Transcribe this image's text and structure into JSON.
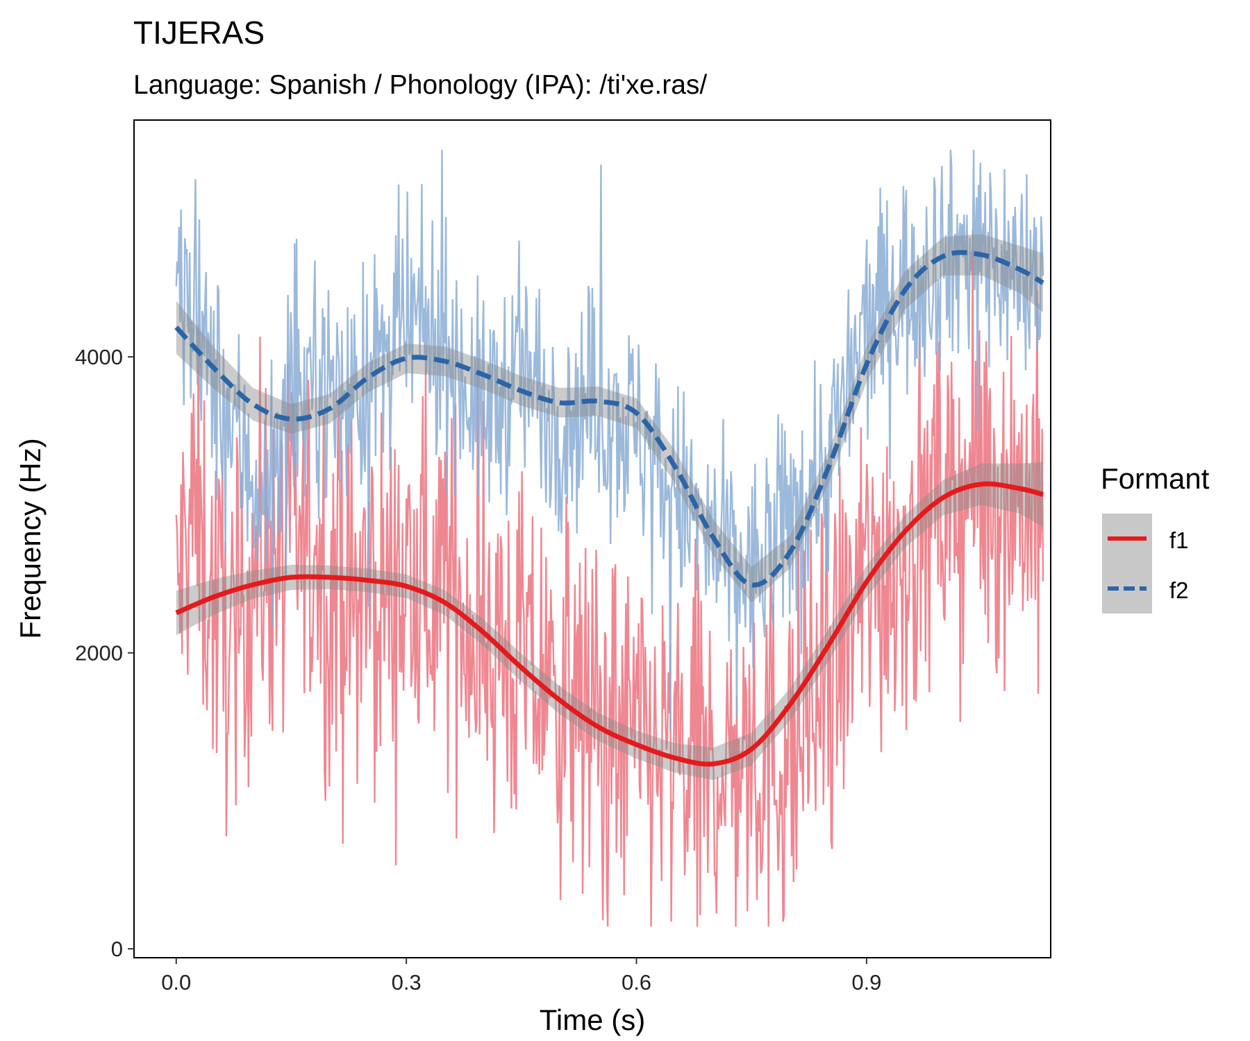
{
  "chart_data": {
    "type": "line",
    "title": "TIJERAS",
    "subtitle": "Language: Spanish / Phonology (IPA): /ti'xe.ras/",
    "xlabel": "Time (s)",
    "ylabel": "Frequency (Hz)",
    "xlim": [
      -0.055,
      1.14
    ],
    "ylim": [
      -60,
      5600
    ],
    "xticks": [
      0.0,
      0.3,
      0.6,
      0.9
    ],
    "xtick_labels": [
      "0.0",
      "0.3",
      "0.6",
      "0.9"
    ],
    "yticks": [
      0,
      2000,
      4000
    ],
    "ytick_labels": [
      "0",
      "2000",
      "4000"
    ],
    "grid": false,
    "legend": {
      "title": "Formant",
      "position": "right"
    },
    "raw_t_max": 1.13,
    "series": [
      {
        "name": "f1",
        "color": "#E41A1C",
        "raw_color": "#EE7D88",
        "linestyle": "solid",
        "raw_points": [
          [
            0.0,
            2300
          ],
          [
            0.02,
            3000
          ],
          [
            0.05,
            2300
          ],
          [
            0.08,
            2000
          ],
          [
            0.1,
            2600
          ],
          [
            0.13,
            2700
          ],
          [
            0.15,
            2650
          ],
          [
            0.18,
            2750
          ],
          [
            0.22,
            2300
          ],
          [
            0.26,
            2400
          ],
          [
            0.3,
            2400
          ],
          [
            0.35,
            2500
          ],
          [
            0.4,
            2100
          ],
          [
            0.45,
            1900
          ],
          [
            0.5,
            1700
          ],
          [
            0.55,
            1500
          ],
          [
            0.6,
            1400
          ],
          [
            0.65,
            1250
          ],
          [
            0.7,
            1200
          ],
          [
            0.75,
            1300
          ],
          [
            0.8,
            1300
          ],
          [
            0.85,
            1800
          ],
          [
            0.9,
            2500
          ],
          [
            0.95,
            2700
          ],
          [
            1.0,
            3000
          ],
          [
            1.05,
            3150
          ],
          [
            1.1,
            3100
          ],
          [
            1.13,
            3000
          ]
        ],
        "smooth": [
          [
            0.0,
            2270
          ],
          [
            0.05,
            2380
          ],
          [
            0.1,
            2460
          ],
          [
            0.15,
            2510
          ],
          [
            0.2,
            2510
          ],
          [
            0.25,
            2490
          ],
          [
            0.3,
            2450
          ],
          [
            0.35,
            2340
          ],
          [
            0.4,
            2140
          ],
          [
            0.45,
            1900
          ],
          [
            0.5,
            1680
          ],
          [
            0.55,
            1500
          ],
          [
            0.6,
            1380
          ],
          [
            0.65,
            1290
          ],
          [
            0.7,
            1250
          ],
          [
            0.75,
            1350
          ],
          [
            0.8,
            1650
          ],
          [
            0.85,
            2050
          ],
          [
            0.9,
            2480
          ],
          [
            0.95,
            2820
          ],
          [
            1.0,
            3050
          ],
          [
            1.05,
            3140
          ],
          [
            1.1,
            3110
          ],
          [
            1.13,
            3070
          ]
        ],
        "band": [
          150,
          120,
          95,
          85,
          80,
          80,
          80,
          85,
          90,
          95,
          95,
          95,
          95,
          100,
          110,
          110,
          110,
          110,
          110,
          110,
          120,
          140,
          170,
          220
        ]
      },
      {
        "name": "f2",
        "color": "#2B65A8",
        "raw_color": "#89ADD5",
        "linestyle": "dashed",
        "raw_points": [
          [
            0.0,
            4500
          ],
          [
            0.03,
            4100
          ],
          [
            0.06,
            3700
          ],
          [
            0.09,
            3300
          ],
          [
            0.12,
            3000
          ],
          [
            0.15,
            3600
          ],
          [
            0.18,
            3900
          ],
          [
            0.22,
            3700
          ],
          [
            0.26,
            3900
          ],
          [
            0.3,
            4200
          ],
          [
            0.35,
            4100
          ],
          [
            0.4,
            3600
          ],
          [
            0.45,
            3900
          ],
          [
            0.5,
            3600
          ],
          [
            0.55,
            3700
          ],
          [
            0.6,
            3500
          ],
          [
            0.65,
            3100
          ],
          [
            0.7,
            2700
          ],
          [
            0.75,
            2500
          ],
          [
            0.8,
            2900
          ],
          [
            0.85,
            3300
          ],
          [
            0.9,
            4200
          ],
          [
            0.95,
            4500
          ],
          [
            1.0,
            4700
          ],
          [
            1.05,
            4750
          ],
          [
            1.1,
            4550
          ],
          [
            1.13,
            4500
          ]
        ],
        "smooth": [
          [
            0.0,
            4200
          ],
          [
            0.05,
            3920
          ],
          [
            0.1,
            3680
          ],
          [
            0.15,
            3580
          ],
          [
            0.2,
            3650
          ],
          [
            0.25,
            3860
          ],
          [
            0.3,
            3990
          ],
          [
            0.35,
            3970
          ],
          [
            0.4,
            3880
          ],
          [
            0.45,
            3770
          ],
          [
            0.5,
            3690
          ],
          [
            0.55,
            3700
          ],
          [
            0.6,
            3620
          ],
          [
            0.65,
            3260
          ],
          [
            0.7,
            2780
          ],
          [
            0.75,
            2460
          ],
          [
            0.8,
            2680
          ],
          [
            0.85,
            3250
          ],
          [
            0.9,
            3950
          ],
          [
            0.95,
            4450
          ],
          [
            1.0,
            4680
          ],
          [
            1.05,
            4690
          ],
          [
            1.1,
            4590
          ],
          [
            1.13,
            4500
          ]
        ],
        "band": [
          180,
          140,
          110,
          100,
          100,
          100,
          100,
          100,
          100,
          100,
          100,
          100,
          100,
          110,
          120,
          120,
          110,
          110,
          120,
          130,
          130,
          140,
          160,
          200
        ]
      }
    ]
  }
}
